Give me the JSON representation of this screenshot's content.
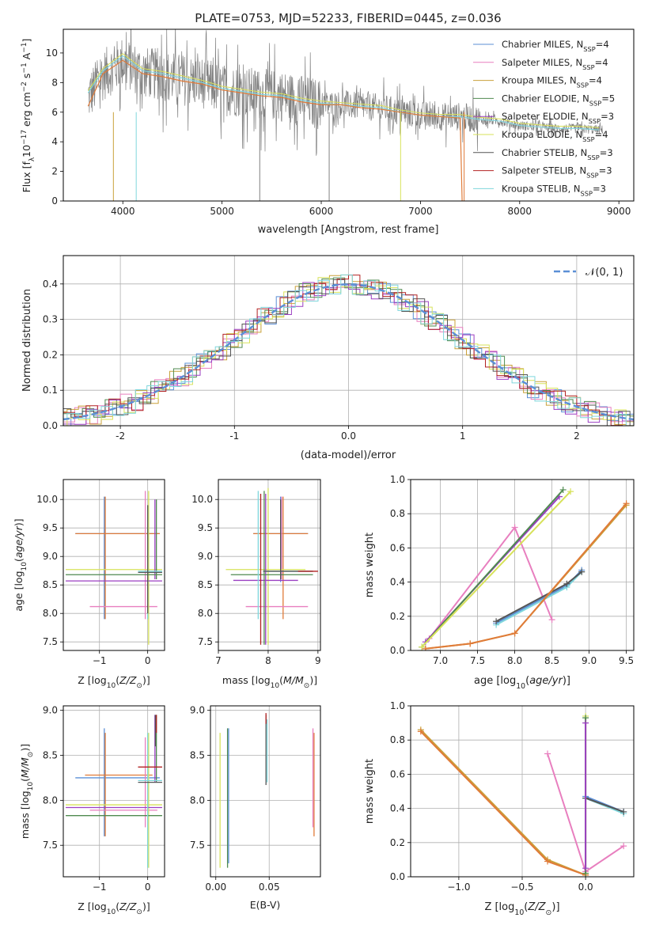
{
  "figure": {
    "title": "PLATE=0753, MJD=52233, FIBERID=0445, z=0.036"
  },
  "colors": {
    "Chabrier MILES": "#5b8fd6",
    "Salpeter MILES": "#e87fbf",
    "Kroupa MILES": "#c9a13a",
    "Chabrier ELODIE": "#4f8a4f",
    "Salpeter ELODIE": "#9b3fc2",
    "Kroupa ELODIE": "#d7e25a",
    "Chabrier STELIB": "#555555",
    "Salpeter STELIB": "#b22222",
    "Kroupa STELIB": "#7fd6dc",
    "best_fit": "#e07b39",
    "spectrum": "#808080",
    "gaussian": "#5b8fd6"
  },
  "legend": {
    "spectrum": [
      {
        "name": "Chabrier MILES",
        "label": "Chabrier MILES, N",
        "sub": "SSP",
        "suffix": "=4"
      },
      {
        "name": "Salpeter MILES",
        "label": "Salpeter MILES, N",
        "sub": "SSP",
        "suffix": "=4"
      },
      {
        "name": "Kroupa MILES",
        "label": "Kroupa MILES, N",
        "sub": "SSP",
        "suffix": "=4"
      },
      {
        "name": "Chabrier ELODIE",
        "label": "Chabrier ELODIE, N",
        "sub": "SSP",
        "suffix": "=5"
      },
      {
        "name": "Salpeter ELODIE",
        "label": "Salpeter ELODIE, N",
        "sub": "SSP",
        "suffix": "=3"
      },
      {
        "name": "Kroupa ELODIE",
        "label": "Kroupa ELODIE, N",
        "sub": "SSP",
        "suffix": "=4"
      },
      {
        "name": "Chabrier STELIB",
        "label": "Chabrier STELIB, N",
        "sub": "SSP",
        "suffix": "=3"
      },
      {
        "name": "Salpeter STELIB",
        "label": "Salpeter STELIB, N",
        "sub": "SSP",
        "suffix": "=3"
      },
      {
        "name": "Kroupa STELIB",
        "label": "Kroupa STELIB, N",
        "sub": "SSP",
        "suffix": "=3"
      }
    ],
    "residual": "𝒩(0, 1)"
  },
  "chart_data": [
    {
      "id": "spectrum",
      "type": "line",
      "xlabel": "wavelength [Angstrom, rest frame]",
      "ylabel": "Flux [f_λ 10^-17 erg cm^-2 s^-1 A^-1]",
      "xlim": [
        3400,
        9150
      ],
      "ylim": [
        0,
        11.6
      ],
      "xticks": [
        4000,
        5000,
        6000,
        7000,
        8000,
        9000
      ],
      "yticks": [
        0,
        2,
        4,
        6,
        8,
        10
      ],
      "data_x": [
        3650,
        3800,
        4000,
        4200,
        4400,
        4600,
        4800,
        5000,
        5200,
        5400,
        5600,
        5800,
        6000,
        6200,
        6400,
        6600,
        6800,
        7000,
        7200,
        7400,
        7600,
        7800,
        8000,
        8200,
        8400,
        8600,
        8800
      ],
      "data_y": [
        7.0,
        8.5,
        9.4,
        8.7,
        8.5,
        8.2,
        8.0,
        7.5,
        7.4,
        7.2,
        7.1,
        6.8,
        6.5,
        6.5,
        6.4,
        6.3,
        6.0,
        5.8,
        5.7,
        5.7,
        5.5,
        5.4,
        5.1,
        5.0,
        4.9,
        4.9,
        4.8
      ],
      "model_x": [
        3650,
        3800,
        4000,
        4200,
        4400,
        4600,
        4800,
        5000,
        5200,
        5400,
        5600,
        5800,
        6000,
        6200,
        6400,
        6600,
        6800,
        7000,
        7200,
        7400,
        7420
      ],
      "model_y": [
        6.4,
        8.6,
        9.5,
        8.6,
        8.4,
        8.1,
        7.9,
        7.5,
        7.3,
        7.1,
        7.0,
        6.7,
        6.5,
        6.5,
        6.3,
        6.2,
        6.0,
        5.8,
        5.7,
        5.6,
        0
      ],
      "model2_x": [
        3650,
        3800,
        4000,
        4200,
        4400,
        4600,
        4800,
        5000,
        5200,
        5400,
        5600,
        5800,
        6000,
        6200,
        6400,
        6600,
        6800,
        7000,
        7200,
        7400,
        7600,
        7800,
        8000,
        8200,
        8400,
        8600,
        8800
      ],
      "model2_y": [
        7.3,
        8.8,
        9.8,
        8.8,
        8.6,
        8.3,
        8.0,
        7.6,
        7.4,
        7.2,
        7.1,
        6.8,
        6.6,
        6.5,
        6.4,
        6.3,
        6.0,
        5.8,
        5.7,
        5.7,
        5.5,
        5.4,
        5.1,
        5.0,
        4.9,
        4.9,
        4.8
      ]
    },
    {
      "id": "residuals",
      "type": "line",
      "xlabel": "(data-model)/error",
      "ylabel": "Normed distribution",
      "xlim": [
        -2.5,
        2.5
      ],
      "ylim": [
        0,
        0.48
      ],
      "xticks": [
        -2,
        -1,
        0,
        1,
        2
      ],
      "yticks": [
        0,
        0.1,
        0.2,
        0.3,
        0.4
      ],
      "gaussian": {
        "mu": 0,
        "sigma": 1
      }
    },
    {
      "id": "age-vs-Z",
      "type": "scatter",
      "xlabel": "Z [log10(Z/Z⊙)]",
      "ylabel": "age  [log10(age/yr)]",
      "xlim": [
        -1.75,
        0.35
      ],
      "ylim": [
        7.35,
        10.35
      ],
      "xticks": [
        -1,
        0
      ],
      "yticks": [
        7.5,
        8.0,
        8.5,
        9.0,
        9.5,
        10.0
      ]
    },
    {
      "id": "age-vs-mass",
      "type": "scatter",
      "xlabel": "mass [log10(M/M⊙)]",
      "ylabel": "",
      "xlim": [
        7.0,
        9.05
      ],
      "ylim": [
        7.35,
        10.35
      ],
      "xticks": [
        8,
        9,
        7
      ],
      "yticks": [
        7.5,
        8.0,
        8.5,
        9.0,
        9.5,
        10.0
      ]
    },
    {
      "id": "weight-vs-age",
      "type": "line",
      "xlabel": "age  [log10(age/yr)]",
      "ylabel": "mass weight",
      "xlim": [
        6.6,
        9.6
      ],
      "ylim": [
        0,
        1.0
      ],
      "xticks": [
        7.0,
        7.5,
        8.0,
        8.5,
        9.0,
        9.5
      ],
      "yticks": [
        0.0,
        0.2,
        0.4,
        0.6,
        0.8,
        1.0
      ],
      "series": [
        {
          "name": "Salpeter MILES",
          "x": [
            6.85,
            8.0,
            8.5
          ],
          "y": [
            0.07,
            0.72,
            0.18
          ]
        },
        {
          "name": "Chabrier MILES",
          "x": [
            7.75,
            8.7,
            8.9
          ],
          "y": [
            0.16,
            0.38,
            0.47
          ]
        },
        {
          "name": "Kroupa STELIB",
          "x": [
            7.75,
            8.7,
            8.9
          ],
          "y": [
            0.15,
            0.37,
            0.46
          ]
        },
        {
          "name": "Chabrier STELIB",
          "x": [
            7.75,
            8.7,
            8.9
          ],
          "y": [
            0.17,
            0.39,
            0.46
          ]
        },
        {
          "name": "Salpeter ELODIE",
          "x": [
            6.8,
            8.6
          ],
          "y": [
            0.05,
            0.9
          ]
        },
        {
          "name": "Chabrier ELODIE",
          "x": [
            6.75,
            8.65
          ],
          "y": [
            0.02,
            0.94
          ]
        },
        {
          "name": "Kroupa ELODIE",
          "x": [
            6.75,
            8.75
          ],
          "y": [
            0.02,
            0.93
          ]
        },
        {
          "name": "Kroupa MILES",
          "x": [
            6.8,
            7.4,
            8.0,
            9.5
          ],
          "y": [
            0.01,
            0.04,
            0.1,
            0.85
          ]
        },
        {
          "name": "best_fit",
          "x": [
            6.8,
            7.4,
            8.0,
            9.5
          ],
          "y": [
            0.01,
            0.04,
            0.1,
            0.86
          ]
        }
      ]
    },
    {
      "id": "mass-vs-Z",
      "type": "scatter",
      "xlabel": "Z [log10(Z/Z⊙)]",
      "ylabel": "mass [log10(M/M⊙)]",
      "xlim": [
        -1.75,
        0.35
      ],
      "ylim": [
        7.15,
        9.05
      ],
      "xticks": [
        -1,
        0
      ],
      "yticks": [
        7.5,
        8.0,
        8.5,
        9.0
      ]
    },
    {
      "id": "mass-vs-EBV",
      "type": "scatter",
      "xlabel": "E(B-V)",
      "ylabel": "",
      "xlim": [
        -0.005,
        0.098
      ],
      "ylim": [
        7.15,
        9.05
      ],
      "xticks": [
        0.0,
        0.05
      ],
      "yticks": [
        7.5,
        8.0,
        8.5,
        9.0
      ]
    },
    {
      "id": "weight-vs-Z",
      "type": "line",
      "xlabel": "Z [log10(Z/Z⊙)]",
      "ylabel": "mass weight",
      "xlim": [
        -1.38,
        0.38
      ],
      "ylim": [
        0,
        1.0
      ],
      "xticks": [
        -1.0,
        -0.5,
        0.0
      ],
      "yticks": [
        0.0,
        0.2,
        0.4,
        0.6,
        0.8,
        1.0
      ],
      "series": [
        {
          "name": "Kroupa MILES",
          "x": [
            -1.3,
            -0.3,
            0.0
          ],
          "y": [
            0.86,
            0.1,
            0.01
          ]
        },
        {
          "name": "best_fit",
          "x": [
            -1.3,
            -0.3,
            0.0
          ],
          "y": [
            0.85,
            0.09,
            0.01
          ]
        },
        {
          "name": "Salpeter MILES",
          "x": [
            -0.3,
            0.0,
            0.3
          ],
          "y": [
            0.72,
            0.03,
            0.18
          ]
        },
        {
          "name": "Chabrier MILES",
          "x": [
            0.0,
            0.3
          ],
          "y": [
            0.47,
            0.38
          ]
        },
        {
          "name": "Kroupa STELIB",
          "x": [
            0.0,
            0.3
          ],
          "y": [
            0.46,
            0.37
          ]
        },
        {
          "name": "Chabrier STELIB",
          "x": [
            0.0,
            0.3
          ],
          "y": [
            0.46,
            0.38
          ]
        },
        {
          "name": "Kroupa ELODIE",
          "x": [
            0.0,
            0.0
          ],
          "y": [
            0.02,
            0.94
          ]
        },
        {
          "name": "Chabrier ELODIE",
          "x": [
            0.0,
            0.0
          ],
          "y": [
            0.02,
            0.93
          ]
        },
        {
          "name": "Salpeter ELODIE",
          "x": [
            0.0,
            0.0
          ],
          "y": [
            0.05,
            0.9
          ]
        }
      ]
    }
  ]
}
